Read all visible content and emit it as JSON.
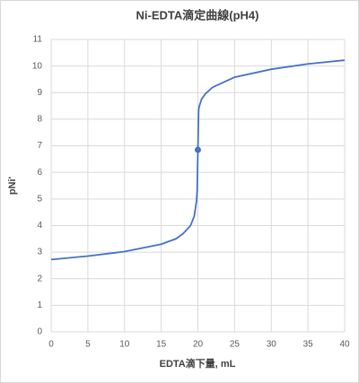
{
  "chart_data": {
    "type": "line",
    "title": "Ni-EDTA滴定曲線(pH4)",
    "x_label": "EDTA滴下量, mL",
    "y_label": "pNi'",
    "x": [
      0,
      5,
      10,
      15,
      17,
      18,
      19,
      19.5,
      19.8,
      19.9,
      20,
      20.1,
      20.2,
      20.5,
      21,
      22,
      25,
      30,
      35,
      40
    ],
    "series": [
      {
        "color": "#4472c4",
        "values": [
          2.72,
          2.85,
          3.02,
          3.3,
          3.5,
          3.7,
          4.0,
          4.35,
          4.9,
          5.3,
          6.85,
          8.35,
          8.5,
          8.75,
          8.95,
          9.2,
          9.58,
          9.88,
          10.08,
          10.22
        ]
      }
    ],
    "highlight": {
      "x": 20,
      "y": 6.85,
      "color": "#4472c4"
    },
    "xlim": [
      0,
      40
    ],
    "xticks": [
      0,
      5,
      10,
      15,
      20,
      25,
      30,
      35,
      40
    ],
    "ylim": [
      0,
      11
    ],
    "yticks": [
      0,
      1,
      2,
      3,
      4,
      5,
      6,
      7,
      8,
      9,
      10,
      11
    ],
    "grid": true
  }
}
